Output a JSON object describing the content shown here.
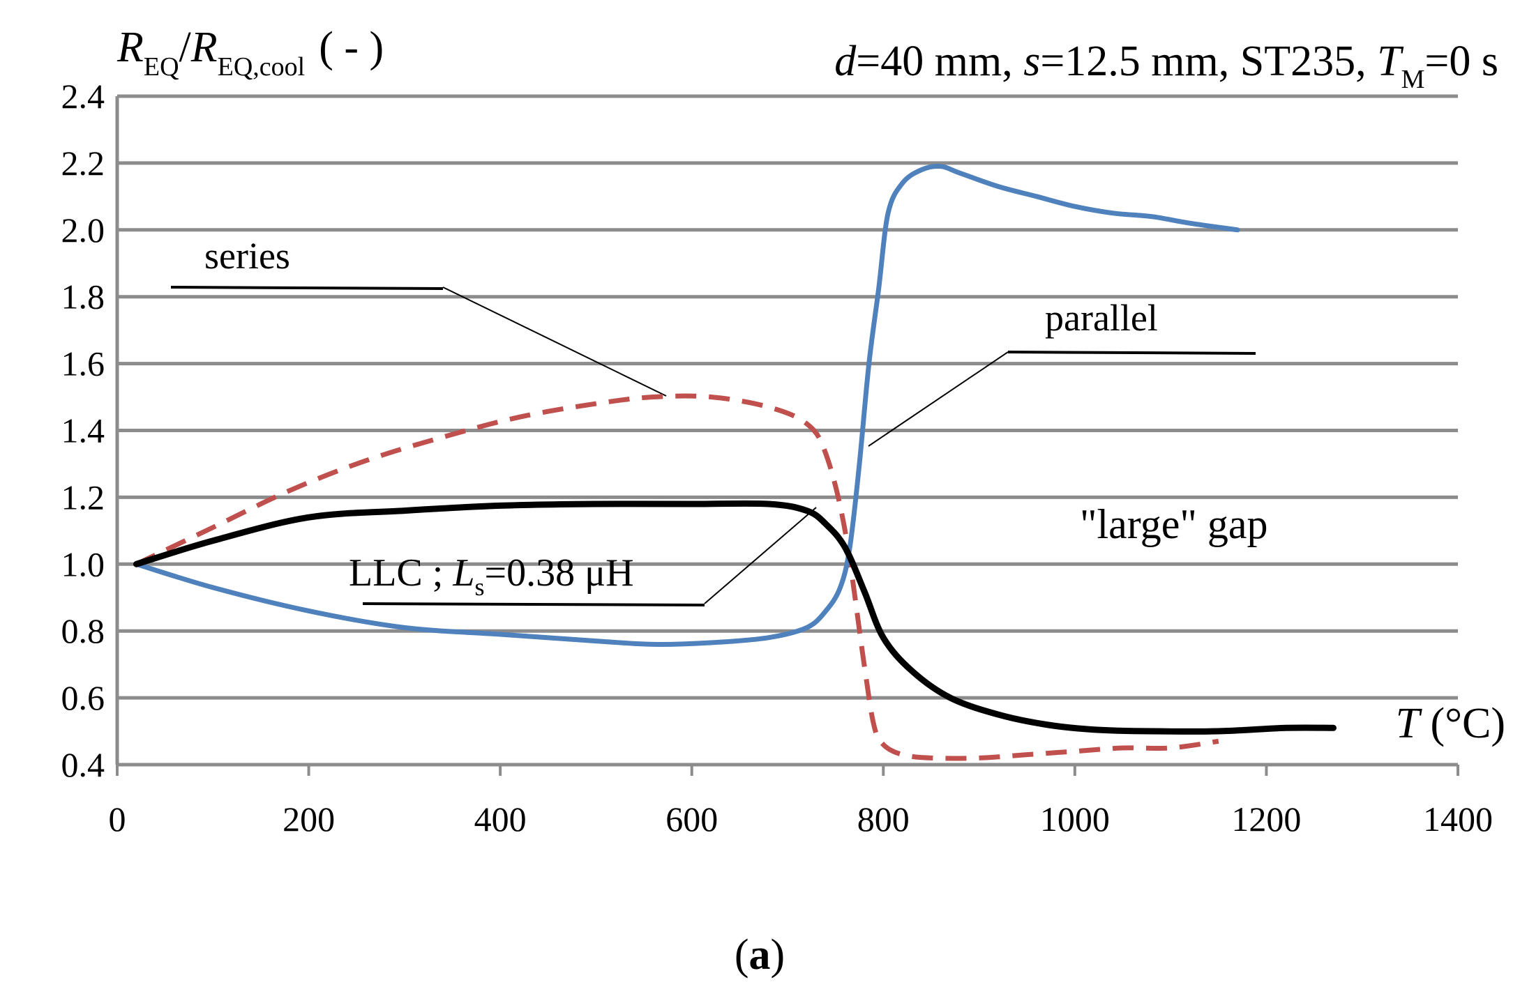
{
  "chart_data": {
    "type": "line",
    "y_axis_title": {
      "main": "R",
      "sub1": "EQ",
      "slash": "/",
      "main2": "R",
      "sub2": "EQ,cool",
      "unit": "( - )"
    },
    "subtitle": {
      "d_var": "d",
      "d_val": "=40 mm, ",
      "s_var": "s",
      "s_val": "=12.5 mm,  ST235, ",
      "t_var": "T",
      "t_sub": "M",
      "t_val": "=0 s"
    },
    "x_axis_title": {
      "var": "T",
      "unit": " (°C)"
    },
    "caption": {
      "open": "(",
      "letter": "a",
      "close": ")"
    },
    "xlim": [
      0,
      1400
    ],
    "ylim": [
      0.4,
      2.4
    ],
    "x_ticks": [
      "0",
      "200",
      "400",
      "600",
      "800",
      "1000",
      "1200",
      "1400"
    ],
    "y_ticks": [
      "0.4",
      "0.6",
      "0.8",
      "1.0",
      "1.2",
      "1.4",
      "1.6",
      "1.8",
      "2.0",
      "2.2",
      "2.4"
    ],
    "grid": true,
    "colors": {
      "series": "#c0504d",
      "parallel": "#4f81bd",
      "llc": "#000000",
      "grid": "#8c8c8c"
    },
    "series": [
      {
        "name": "series",
        "style": "dashed",
        "x": [
          20,
          100,
          180,
          260,
          340,
          420,
          500,
          560,
          620,
          680,
          720,
          740,
          760,
          780,
          790,
          800,
          820,
          850,
          900,
          950,
          1000,
          1050,
          1100,
          1150
        ],
        "y": [
          1.0,
          1.11,
          1.22,
          1.31,
          1.38,
          1.44,
          1.48,
          1.5,
          1.5,
          1.47,
          1.42,
          1.33,
          1.1,
          0.7,
          0.52,
          0.46,
          0.43,
          0.42,
          0.42,
          0.43,
          0.44,
          0.45,
          0.45,
          0.47
        ]
      },
      {
        "name": "parallel",
        "style": "solid",
        "x": [
          20,
          100,
          200,
          300,
          400,
          500,
          560,
          620,
          680,
          720,
          740,
          755,
          765,
          775,
          785,
          795,
          805,
          820,
          840,
          860,
          880,
          920,
          960,
          1000,
          1040,
          1080,
          1120,
          1170
        ],
        "y": [
          1.0,
          0.93,
          0.86,
          0.81,
          0.79,
          0.77,
          0.76,
          0.765,
          0.78,
          0.81,
          0.86,
          0.93,
          1.05,
          1.3,
          1.6,
          1.82,
          2.05,
          2.14,
          2.18,
          2.19,
          2.17,
          2.13,
          2.1,
          2.07,
          2.05,
          2.04,
          2.02,
          2.0
        ]
      },
      {
        "name": "LLC ; Ls=0.38 μH",
        "style": "solid",
        "x": [
          20,
          100,
          200,
          300,
          400,
          500,
          600,
          680,
          720,
          740,
          760,
          780,
          800,
          830,
          870,
          920,
          970,
          1020,
          1080,
          1150,
          1220,
          1270
        ],
        "y": [
          1.0,
          1.07,
          1.14,
          1.16,
          1.175,
          1.18,
          1.18,
          1.18,
          1.16,
          1.12,
          1.05,
          0.92,
          0.78,
          0.68,
          0.6,
          0.55,
          0.52,
          0.505,
          0.5,
          0.5,
          0.51,
          0.51
        ]
      }
    ],
    "annotations": {
      "series_label": "series",
      "parallel_label": "parallel",
      "llc_label_prefix": "LLC ; ",
      "llc_label_var": "L",
      "llc_label_sub": "s",
      "llc_label_value": "=0.38 μH",
      "gap_label": "\"large\" gap"
    }
  }
}
